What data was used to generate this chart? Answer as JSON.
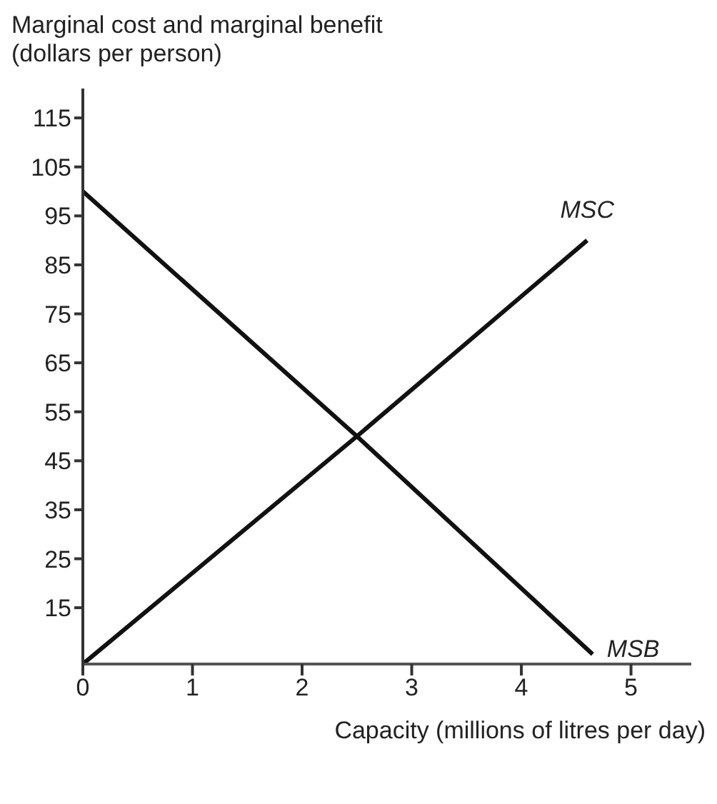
{
  "chart_data": {
    "type": "line",
    "ylabel": "Marginal cost and marginal benefit\n(dollars per person)",
    "xlabel": "Capacity (millions of litres per day)",
    "series": [
      {
        "name": "MSC",
        "color": "#111111",
        "x": [
          0,
          2.5,
          4.6
        ],
        "values": [
          3.5,
          50,
          90
        ]
      },
      {
        "name": "MSB",
        "color": "#111111",
        "x": [
          0,
          2.5,
          4.65
        ],
        "values": [
          100,
          50,
          5.5
        ]
      }
    ],
    "xlim": [
      0,
      5.55
    ],
    "xticks": [
      0,
      1,
      2,
      3,
      4,
      5
    ],
    "ylim": [
      3.5,
      121
    ],
    "yticks": [
      15,
      25,
      35,
      45,
      55,
      65,
      75,
      85,
      95,
      105,
      115
    ],
    "grid": false,
    "legend": false,
    "marker": "none",
    "line_style": "solid"
  }
}
